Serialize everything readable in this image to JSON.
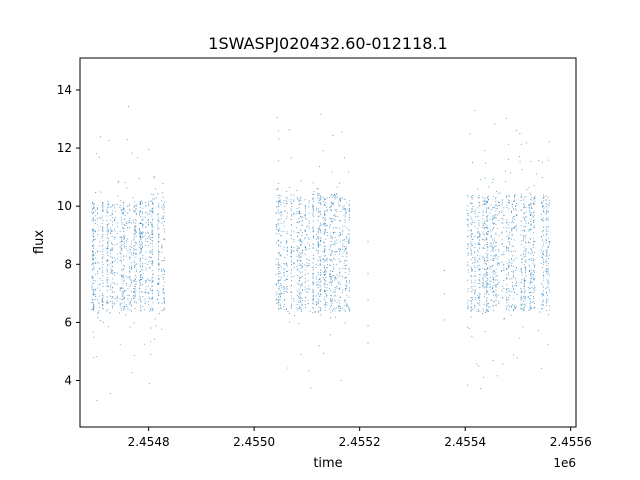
{
  "chart_data": {
    "type": "scatter",
    "title": "1SWASPJ020432.60-012118.1",
    "xlabel": "time",
    "ylabel": "flux",
    "x_offset_label": "1e6",
    "xlim": [
      2454670,
      2455610
    ],
    "ylim": [
      2.4,
      15.1
    ],
    "x_ticks": [
      2454800,
      2455000,
      2455200,
      2455400,
      2455600
    ],
    "x_tick_labels": [
      "2.4548",
      "2.4550",
      "2.4552",
      "2.4554",
      "2.4556"
    ],
    "y_ticks": [
      4,
      6,
      8,
      10,
      12,
      14
    ],
    "y_tick_labels": [
      "4",
      "6",
      "8",
      "10",
      "12",
      "14"
    ],
    "marker_color": "#1f77b4",
    "marker": "tiny dots",
    "grid": false,
    "legend": "none",
    "observing_seasons": [
      {
        "x_range": [
          2454690,
          2454830
        ],
        "flux_core_range": [
          6.4,
          10.2
        ],
        "flux_outlier_range": [
          3.0,
          14.5
        ]
      },
      {
        "x_range": [
          2455040,
          2455180
        ],
        "flux_core_range": [
          6.4,
          10.4
        ],
        "flux_outlier_range": [
          3.0,
          14.1
        ]
      },
      {
        "x_range": [
          2455400,
          2455560
        ],
        "flux_core_range": [
          6.4,
          10.4
        ],
        "flux_outlier_range": [
          3.1,
          14.5
        ]
      }
    ],
    "sparse_points": [
      {
        "x": 2455215,
        "y": 8.8
      },
      {
        "x": 2455215,
        "y": 7.7
      },
      {
        "x": 2455215,
        "y": 6.8
      },
      {
        "x": 2455215,
        "y": 5.9
      },
      {
        "x": 2455215,
        "y": 5.3
      },
      {
        "x": 2455360,
        "y": 7.0
      },
      {
        "x": 2455360,
        "y": 7.8
      },
      {
        "x": 2455360,
        "y": 6.1
      }
    ]
  }
}
